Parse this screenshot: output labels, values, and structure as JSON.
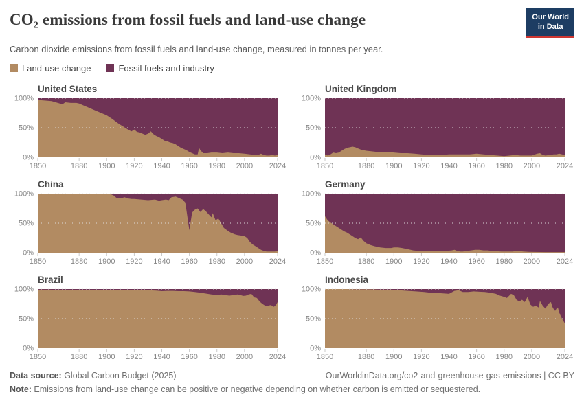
{
  "header": {
    "title": "CO₂ emissions from fossil fuels and land-use change",
    "subtitle": "Carbon dioxide emissions from fossil fuels and land-use change, measured in tonnes per year.",
    "logo": {
      "line1": "Our World",
      "line2": "in Data"
    }
  },
  "legend": {
    "items": [
      {
        "label": "Land-use change",
        "color": "#B28B62"
      },
      {
        "label": "Fossil fuels and industry",
        "color": "#6F3355"
      }
    ]
  },
  "footer": {
    "source_label": "Data source:",
    "source_text": " Global Carbon Budget (2025)",
    "link_text": "OurWorldinData.org/co2-and-greenhouse-gas-emissions | CC BY",
    "note_label": "Note:",
    "note_text": " Emissions from land-use change can be positive or negative depending on whether carbon is emitted or sequestered."
  },
  "chart_config": {
    "type": "area",
    "stacking": "relative_100pct",
    "colors": {
      "land_use": "#B28B62",
      "fossil": "#6F3355"
    },
    "grid_color": "#e3e3e3",
    "axis_text_color": "#878787",
    "tick_color": "#c9c9c9",
    "ylim": [
      0,
      100
    ],
    "yticks": [
      0,
      50,
      100
    ],
    "ytick_labels": [
      "0%",
      "50%",
      "100%"
    ],
    "xlim": [
      1850,
      2024
    ],
    "xticks": [
      1850,
      1880,
      1900,
      1920,
      1940,
      1960,
      1980,
      2000,
      2024
    ],
    "gridlines": "dotted horizontal lines at 50% and 100%",
    "series_names": [
      "Land-use change",
      "Fossil fuels and industry"
    ],
    "series_note": "points are [year, Land-use change share % of total CO₂]; Fossil fuels and industry share = 100 − value"
  },
  "chart_data": [
    {
      "title": "United States",
      "type": "area",
      "points": [
        [
          1850,
          97
        ],
        [
          1855,
          96
        ],
        [
          1860,
          95
        ],
        [
          1863,
          93
        ],
        [
          1866,
          91
        ],
        [
          1868,
          90
        ],
        [
          1870,
          93
        ],
        [
          1874,
          92
        ],
        [
          1878,
          92
        ],
        [
          1880,
          91
        ],
        [
          1884,
          87
        ],
        [
          1888,
          83
        ],
        [
          1892,
          79
        ],
        [
          1896,
          75
        ],
        [
          1900,
          71
        ],
        [
          1904,
          65
        ],
        [
          1908,
          58
        ],
        [
          1910,
          55
        ],
        [
          1912,
          52
        ],
        [
          1914,
          49
        ],
        [
          1916,
          46
        ],
        [
          1918,
          44
        ],
        [
          1920,
          47
        ],
        [
          1922,
          43
        ],
        [
          1924,
          42
        ],
        [
          1926,
          40
        ],
        [
          1928,
          38
        ],
        [
          1930,
          40
        ],
        [
          1932,
          44
        ],
        [
          1934,
          39
        ],
        [
          1936,
          36
        ],
        [
          1938,
          34
        ],
        [
          1940,
          31
        ],
        [
          1942,
          28
        ],
        [
          1944,
          27
        ],
        [
          1946,
          25
        ],
        [
          1948,
          24
        ],
        [
          1950,
          22
        ],
        [
          1952,
          19
        ],
        [
          1954,
          16
        ],
        [
          1956,
          14
        ],
        [
          1958,
          12
        ],
        [
          1960,
          9
        ],
        [
          1962,
          7
        ],
        [
          1964,
          5
        ],
        [
          1966,
          5
        ],
        [
          1967,
          16
        ],
        [
          1968,
          12
        ],
        [
          1970,
          7
        ],
        [
          1973,
          7
        ],
        [
          1976,
          8
        ],
        [
          1980,
          8
        ],
        [
          1984,
          7
        ],
        [
          1988,
          8
        ],
        [
          1992,
          7
        ],
        [
          1996,
          7
        ],
        [
          2000,
          6
        ],
        [
          2004,
          5
        ],
        [
          2008,
          4
        ],
        [
          2010,
          4
        ],
        [
          2012,
          6
        ],
        [
          2014,
          4
        ],
        [
          2016,
          3
        ],
        [
          2018,
          3
        ],
        [
          2020,
          4
        ],
        [
          2022,
          3
        ],
        [
          2024,
          4
        ]
      ]
    },
    {
      "title": "United Kingdom",
      "type": "area",
      "points": [
        [
          1850,
          5
        ],
        [
          1852,
          3
        ],
        [
          1854,
          5
        ],
        [
          1856,
          8
        ],
        [
          1858,
          7
        ],
        [
          1860,
          8
        ],
        [
          1862,
          11
        ],
        [
          1864,
          14
        ],
        [
          1866,
          16
        ],
        [
          1868,
          17
        ],
        [
          1870,
          18
        ],
        [
          1872,
          17
        ],
        [
          1874,
          15
        ],
        [
          1876,
          13
        ],
        [
          1878,
          12
        ],
        [
          1880,
          11
        ],
        [
          1884,
          10
        ],
        [
          1888,
          9
        ],
        [
          1892,
          9
        ],
        [
          1896,
          9
        ],
        [
          1900,
          8
        ],
        [
          1905,
          7
        ],
        [
          1910,
          7
        ],
        [
          1915,
          6
        ],
        [
          1920,
          5
        ],
        [
          1925,
          4
        ],
        [
          1930,
          4
        ],
        [
          1935,
          4
        ],
        [
          1940,
          5
        ],
        [
          1945,
          5
        ],
        [
          1950,
          5
        ],
        [
          1955,
          5
        ],
        [
          1960,
          6
        ],
        [
          1965,
          5
        ],
        [
          1970,
          4
        ],
        [
          1975,
          3
        ],
        [
          1980,
          2
        ],
        [
          1984,
          3
        ],
        [
          1988,
          4
        ],
        [
          1992,
          3
        ],
        [
          1996,
          3
        ],
        [
          2000,
          3
        ],
        [
          2004,
          6
        ],
        [
          2006,
          7
        ],
        [
          2008,
          4
        ],
        [
          2010,
          3
        ],
        [
          2013,
          4
        ],
        [
          2016,
          5
        ],
        [
          2018,
          5
        ],
        [
          2020,
          6
        ],
        [
          2022,
          5
        ],
        [
          2024,
          4
        ]
      ]
    },
    {
      "title": "China",
      "type": "area",
      "points": [
        [
          1850,
          100
        ],
        [
          1860,
          100
        ],
        [
          1870,
          100
        ],
        [
          1880,
          100
        ],
        [
          1890,
          99.5
        ],
        [
          1896,
          99
        ],
        [
          1900,
          99
        ],
        [
          1903,
          99
        ],
        [
          1905,
          97
        ],
        [
          1907,
          93
        ],
        [
          1910,
          92
        ],
        [
          1913,
          94
        ],
        [
          1915,
          92
        ],
        [
          1918,
          91
        ],
        [
          1920,
          91
        ],
        [
          1925,
          90
        ],
        [
          1930,
          89
        ],
        [
          1935,
          90
        ],
        [
          1938,
          88
        ],
        [
          1940,
          89
        ],
        [
          1943,
          90
        ],
        [
          1945,
          89
        ],
        [
          1947,
          94
        ],
        [
          1950,
          95
        ],
        [
          1953,
          92
        ],
        [
          1955,
          90
        ],
        [
          1957,
          85
        ],
        [
          1958,
          70
        ],
        [
          1960,
          38
        ],
        [
          1962,
          68
        ],
        [
          1964,
          73
        ],
        [
          1966,
          75
        ],
        [
          1968,
          69
        ],
        [
          1970,
          74
        ],
        [
          1972,
          70
        ],
        [
          1974,
          65
        ],
        [
          1976,
          60
        ],
        [
          1977,
          67
        ],
        [
          1979,
          55
        ],
        [
          1981,
          58
        ],
        [
          1983,
          50
        ],
        [
          1985,
          42
        ],
        [
          1988,
          37
        ],
        [
          1990,
          34
        ],
        [
          1993,
          31
        ],
        [
          1995,
          30
        ],
        [
          1998,
          29
        ],
        [
          2000,
          28
        ],
        [
          2002,
          25
        ],
        [
          2004,
          18
        ],
        [
          2006,
          14
        ],
        [
          2008,
          11
        ],
        [
          2010,
          8
        ],
        [
          2012,
          5
        ],
        [
          2014,
          3
        ],
        [
          2016,
          2
        ],
        [
          2018,
          2
        ],
        [
          2020,
          2
        ],
        [
          2022,
          2
        ],
        [
          2024,
          3
        ]
      ]
    },
    {
      "title": "Germany",
      "type": "area",
      "points": [
        [
          1850,
          62
        ],
        [
          1852,
          55
        ],
        [
          1854,
          51
        ],
        [
          1856,
          48
        ],
        [
          1858,
          45
        ],
        [
          1860,
          42
        ],
        [
          1862,
          39
        ],
        [
          1864,
          36
        ],
        [
          1866,
          34
        ],
        [
          1868,
          31
        ],
        [
          1870,
          28
        ],
        [
          1872,
          25
        ],
        [
          1874,
          23
        ],
        [
          1876,
          26
        ],
        [
          1878,
          20
        ],
        [
          1880,
          16
        ],
        [
          1883,
          13
        ],
        [
          1886,
          11
        ],
        [
          1890,
          9
        ],
        [
          1894,
          8
        ],
        [
          1898,
          8
        ],
        [
          1900,
          9
        ],
        [
          1903,
          9
        ],
        [
          1906,
          8
        ],
        [
          1910,
          6
        ],
        [
          1914,
          4
        ],
        [
          1918,
          3
        ],
        [
          1922,
          3
        ],
        [
          1926,
          3
        ],
        [
          1930,
          3
        ],
        [
          1934,
          3
        ],
        [
          1938,
          3
        ],
        [
          1942,
          4
        ],
        [
          1944,
          5
        ],
        [
          1946,
          3
        ],
        [
          1948,
          2
        ],
        [
          1950,
          2
        ],
        [
          1953,
          3
        ],
        [
          1956,
          4
        ],
        [
          1959,
          5
        ],
        [
          1962,
          5
        ],
        [
          1965,
          4
        ],
        [
          1968,
          4
        ],
        [
          1971,
          3
        ],
        [
          1974,
          2.5
        ],
        [
          1978,
          2
        ],
        [
          1982,
          2
        ],
        [
          1986,
          2
        ],
        [
          1990,
          3
        ],
        [
          1994,
          2
        ],
        [
          1998,
          1.5
        ],
        [
          2002,
          1.3
        ],
        [
          2006,
          1.2
        ],
        [
          2010,
          1
        ],
        [
          2014,
          1
        ],
        [
          2018,
          1
        ],
        [
          2021,
          1
        ],
        [
          2024,
          1
        ]
      ]
    },
    {
      "title": "Brazil",
      "type": "area",
      "points": [
        [
          1850,
          99
        ],
        [
          1858,
          99
        ],
        [
          1866,
          98.5
        ],
        [
          1874,
          98.5
        ],
        [
          1882,
          98.5
        ],
        [
          1890,
          98.5
        ],
        [
          1898,
          98.5
        ],
        [
          1906,
          98.5
        ],
        [
          1914,
          98
        ],
        [
          1922,
          98
        ],
        [
          1930,
          98
        ],
        [
          1936,
          97.5
        ],
        [
          1940,
          96.5
        ],
        [
          1944,
          97
        ],
        [
          1948,
          97
        ],
        [
          1952,
          96.5
        ],
        [
          1956,
          96.5
        ],
        [
          1960,
          96
        ],
        [
          1964,
          95
        ],
        [
          1968,
          94
        ],
        [
          1972,
          92.5
        ],
        [
          1976,
          91
        ],
        [
          1980,
          90
        ],
        [
          1983,
          91
        ],
        [
          1986,
          90
        ],
        [
          1989,
          89
        ],
        [
          1992,
          90
        ],
        [
          1995,
          91
        ],
        [
          1997,
          90
        ],
        [
          1999,
          88.5
        ],
        [
          2001,
          89
        ],
        [
          2003,
          91
        ],
        [
          2005,
          92
        ],
        [
          2007,
          86
        ],
        [
          2009,
          85
        ],
        [
          2011,
          79
        ],
        [
          2013,
          75
        ],
        [
          2015,
          72
        ],
        [
          2017,
          72
        ],
        [
          2019,
          73
        ],
        [
          2020,
          72
        ],
        [
          2021,
          70
        ],
        [
          2022,
          71
        ],
        [
          2023,
          74
        ],
        [
          2024,
          78
        ]
      ]
    },
    {
      "title": "Indonesia",
      "type": "area",
      "points": [
        [
          1850,
          100
        ],
        [
          1858,
          100
        ],
        [
          1866,
          100
        ],
        [
          1874,
          99.5
        ],
        [
          1882,
          99.5
        ],
        [
          1890,
          99
        ],
        [
          1898,
          99
        ],
        [
          1904,
          98
        ],
        [
          1910,
          97
        ],
        [
          1916,
          96
        ],
        [
          1922,
          95
        ],
        [
          1928,
          93.5
        ],
        [
          1934,
          93
        ],
        [
          1940,
          92
        ],
        [
          1944,
          97
        ],
        [
          1947,
          98
        ],
        [
          1950,
          95
        ],
        [
          1954,
          95
        ],
        [
          1958,
          96
        ],
        [
          1962,
          95.5
        ],
        [
          1966,
          95
        ],
        [
          1970,
          94
        ],
        [
          1974,
          92
        ],
        [
          1977,
          89
        ],
        [
          1980,
          87
        ],
        [
          1982,
          85
        ],
        [
          1985,
          92
        ],
        [
          1987,
          90
        ],
        [
          1989,
          82
        ],
        [
          1991,
          79
        ],
        [
          1993,
          82
        ],
        [
          1995,
          78
        ],
        [
          1997,
          87
        ],
        [
          1999,
          74
        ],
        [
          2001,
          70
        ],
        [
          2003,
          72
        ],
        [
          2005,
          69
        ],
        [
          2006,
          80
        ],
        [
          2008,
          72
        ],
        [
          2010,
          67
        ],
        [
          2012,
          75
        ],
        [
          2014,
          78
        ],
        [
          2015,
          70
        ],
        [
          2016,
          66
        ],
        [
          2017,
          63
        ],
        [
          2018,
          67
        ],
        [
          2019,
          69
        ],
        [
          2020,
          60
        ],
        [
          2021,
          55
        ],
        [
          2022,
          50
        ],
        [
          2023,
          46
        ],
        [
          2024,
          42
        ]
      ]
    }
  ]
}
